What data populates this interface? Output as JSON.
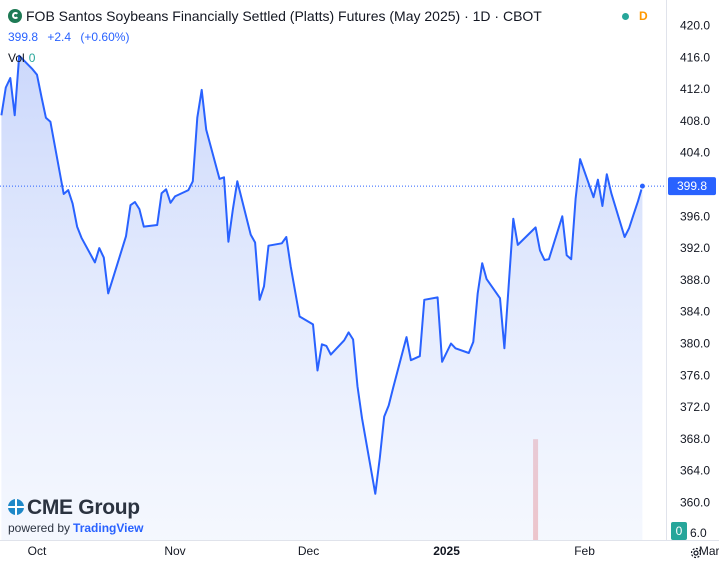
{
  "header": {
    "title": "FOB Santos Soybeans Financially Settled (Platts) Futures (May 2025) · 1D · CBOT",
    "last_price": "399.8",
    "change": "+2.4",
    "change_pct": "(+0.60%)",
    "volume_label": "Vol",
    "volume_value": "0",
    "status_flag": "D"
  },
  "branding": {
    "name": "CME Group",
    "powered_by": "powered by",
    "platform": "TradingView"
  },
  "colors": {
    "line": "#2962ff",
    "area_top": "#c9d6fb",
    "price_tag": "#2962ff",
    "volume_bar": "#ef9a9a",
    "volume_tag": "#26a69a"
  },
  "chart_data": {
    "type": "area",
    "title": "FOB Santos Soybeans Financially Settled (Platts) Futures (May 2025)",
    "interval": "1D",
    "exchange": "CBOT",
    "ylim": [
      356,
      421
    ],
    "y_ticks": [
      420,
      416,
      412,
      408,
      404,
      400,
      396,
      392,
      388,
      384,
      380,
      376,
      372,
      368,
      364,
      360
    ],
    "y_tick_labels": [
      "420.0",
      "416.0",
      "412.0",
      "408.0",
      "404.0",
      "",
      "396.0",
      "392.0",
      "388.0",
      "384.0",
      "380.0",
      "376.0",
      "372.0",
      "368.0",
      "364.0",
      "360.0"
    ],
    "bottom_partial_label": "6.0",
    "x_labels": [
      "Oct",
      "Nov",
      "Dec",
      "2025",
      "Feb",
      "Mar"
    ],
    "x_label_dates": [
      "2024-10-01",
      "2024-11-01",
      "2024-12-01",
      "2025-01-01",
      "2025-02-01",
      "2025-03-01"
    ],
    "xlim": [
      "2024-09-23",
      "2025-03-09"
    ],
    "last_value": 399.8,
    "last_value_label": "399.8",
    "volume_label_right": "0",
    "series": [
      {
        "values": [
          [
            "2024-09-23",
            408.7
          ],
          [
            "2024-09-24",
            412.2
          ],
          [
            "2024-09-25",
            413.4
          ],
          [
            "2024-09-26",
            408.7
          ],
          [
            "2024-09-27",
            416.2
          ],
          [
            "2024-09-30",
            414.5
          ],
          [
            "2024-10-01",
            413.8
          ],
          [
            "2024-10-02",
            411.0
          ],
          [
            "2024-10-03",
            408.4
          ],
          [
            "2024-10-04",
            407.9
          ],
          [
            "2024-10-07",
            398.8
          ],
          [
            "2024-10-08",
            399.3
          ],
          [
            "2024-10-09",
            397.6
          ],
          [
            "2024-10-10",
            394.7
          ],
          [
            "2024-10-11",
            393.3
          ],
          [
            "2024-10-14",
            390.2
          ],
          [
            "2024-10-15",
            392.0
          ],
          [
            "2024-10-16",
            390.8
          ],
          [
            "2024-10-17",
            386.3
          ],
          [
            "2024-10-18",
            388.1
          ],
          [
            "2024-10-21",
            393.5
          ],
          [
            "2024-10-22",
            397.4
          ],
          [
            "2024-10-23",
            397.8
          ],
          [
            "2024-10-24",
            396.9
          ],
          [
            "2024-10-25",
            394.7
          ],
          [
            "2024-10-28",
            394.9
          ],
          [
            "2024-10-29",
            398.9
          ],
          [
            "2024-10-30",
            399.4
          ],
          [
            "2024-10-31",
            397.7
          ],
          [
            "2024-11-01",
            398.5
          ],
          [
            "2024-11-04",
            399.3
          ],
          [
            "2024-11-05",
            400.4
          ],
          [
            "2024-11-06",
            408.4
          ],
          [
            "2024-11-07",
            411.9
          ],
          [
            "2024-11-08",
            406.9
          ],
          [
            "2024-11-11",
            400.7
          ],
          [
            "2024-11-12",
            400.9
          ],
          [
            "2024-11-13",
            392.8
          ],
          [
            "2024-11-14",
            396.9
          ],
          [
            "2024-11-15",
            400.4
          ],
          [
            "2024-11-18",
            393.7
          ],
          [
            "2024-11-19",
            392.7
          ],
          [
            "2024-11-20",
            385.5
          ],
          [
            "2024-11-21",
            387.2
          ],
          [
            "2024-11-22",
            392.3
          ],
          [
            "2024-11-25",
            392.6
          ],
          [
            "2024-11-26",
            393.4
          ],
          [
            "2024-11-27",
            389.7
          ],
          [
            "2024-11-29",
            383.4
          ],
          [
            "2024-12-02",
            382.4
          ],
          [
            "2024-12-03",
            376.6
          ],
          [
            "2024-12-04",
            379.9
          ],
          [
            "2024-12-05",
            379.7
          ],
          [
            "2024-12-06",
            378.6
          ],
          [
            "2024-12-09",
            380.4
          ],
          [
            "2024-12-10",
            381.4
          ],
          [
            "2024-12-11",
            380.5
          ],
          [
            "2024-12-12",
            374.6
          ],
          [
            "2024-12-13",
            370.6
          ],
          [
            "2024-12-16",
            361.1
          ],
          [
            "2024-12-17",
            365.6
          ],
          [
            "2024-12-18",
            370.8
          ],
          [
            "2024-12-19",
            372.2
          ],
          [
            "2024-12-20",
            374.4
          ],
          [
            "2024-12-23",
            380.8
          ],
          [
            "2024-12-24",
            377.9
          ],
          [
            "2024-12-26",
            378.4
          ],
          [
            "2024-12-27",
            385.5
          ],
          [
            "2024-12-30",
            385.8
          ],
          [
            "2024-12-31",
            377.7
          ],
          [
            "2025-01-02",
            380.0
          ],
          [
            "2025-01-03",
            379.4
          ],
          [
            "2025-01-06",
            378.8
          ],
          [
            "2025-01-07",
            380.2
          ],
          [
            "2025-01-08",
            386.3
          ],
          [
            "2025-01-09",
            390.1
          ],
          [
            "2025-01-10",
            388.1
          ],
          [
            "2025-01-13",
            385.7
          ],
          [
            "2025-01-14",
            379.4
          ],
          [
            "2025-01-15",
            387.7
          ],
          [
            "2025-01-16",
            395.7
          ],
          [
            "2025-01-17",
            392.4
          ],
          [
            "2025-01-21",
            394.6
          ],
          [
            "2025-01-22",
            391.7
          ],
          [
            "2025-01-23",
            390.5
          ],
          [
            "2025-01-24",
            390.6
          ],
          [
            "2025-01-27",
            396.0
          ],
          [
            "2025-01-28",
            391.1
          ],
          [
            "2025-01-29",
            390.6
          ],
          [
            "2025-01-30",
            398.2
          ],
          [
            "2025-01-31",
            403.2
          ],
          [
            "2025-02-03",
            398.4
          ],
          [
            "2025-02-04",
            400.6
          ],
          [
            "2025-02-05",
            397.3
          ],
          [
            "2025-02-06",
            401.3
          ],
          [
            "2025-02-07",
            398.9
          ],
          [
            "2025-02-10",
            393.4
          ],
          [
            "2025-02-11",
            394.5
          ],
          [
            "2025-02-12",
            396.2
          ],
          [
            "2025-02-13",
            397.9
          ],
          [
            "2025-02-14",
            399.8
          ]
        ]
      }
    ],
    "volume": [
      {
        "date": "2025-01-21",
        "value_ratio_of_pane": 0.72
      }
    ],
    "grid": false,
    "reference_line": 399.8
  }
}
